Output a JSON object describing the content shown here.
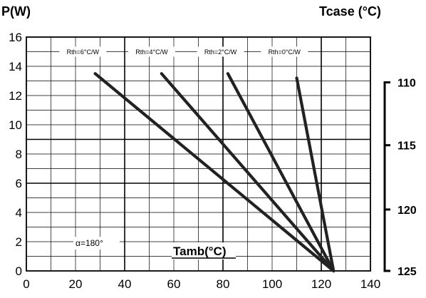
{
  "chart_data": {
    "type": "line",
    "title_left": "P(W)",
    "title_right": "Tcase (°C)",
    "xlabel": "Tamb(°C)",
    "annotation": "α=180°",
    "xlim": [
      0,
      140
    ],
    "ylim": [
      0,
      16
    ],
    "x_ticks": [
      "0",
      "20",
      "40",
      "60",
      "80",
      "100",
      "120",
      "140"
    ],
    "y_ticks": [
      "0",
      "2",
      "4",
      "6",
      "8",
      "10",
      "12",
      "14",
      "16"
    ],
    "right_axis": {
      "ticks": [
        "110",
        "115",
        "120",
        "125"
      ],
      "values_at_p": [
        12.9,
        8.6,
        4.2,
        0
      ]
    },
    "rth_labels": [
      "Rth=6°C/W",
      "Rth=4°C/W",
      "Rth=2°C/W",
      "Rth=0°C/W"
    ],
    "series": [
      {
        "name": "Rth=6°C/W",
        "x": [
          28,
          125
        ],
        "y": [
          13.5,
          0
        ]
      },
      {
        "name": "Rth=4°C/W",
        "x": [
          55,
          125
        ],
        "y": [
          13.5,
          0
        ]
      },
      {
        "name": "Rth=2°C/W",
        "x": [
          82,
          125
        ],
        "y": [
          13.5,
          0
        ]
      },
      {
        "name": "Rth=0°C/W",
        "x": [
          110,
          125
        ],
        "y": [
          13.2,
          0
        ]
      }
    ],
    "grid": true
  }
}
